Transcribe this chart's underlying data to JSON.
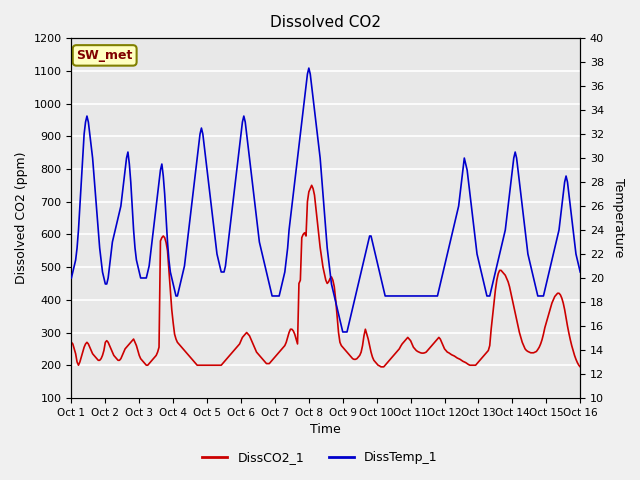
{
  "title": "Dissolved CO2",
  "xlabel": "Time",
  "ylabel_left": "Dissolved CO2 (ppm)",
  "ylabel_right": "Temperature",
  "ylim_left": [
    100,
    1200
  ],
  "ylim_right": [
    10,
    40
  ],
  "yticks_left": [
    100,
    200,
    300,
    400,
    500,
    600,
    700,
    800,
    900,
    1000,
    1100,
    1200
  ],
  "yticks_right": [
    10,
    12,
    14,
    16,
    18,
    20,
    22,
    24,
    26,
    28,
    30,
    32,
    34,
    36,
    38,
    40
  ],
  "xtick_labels": [
    "Oct 1",
    "Oct 2",
    "Oct 3",
    "Oct 4",
    "Oct 5",
    "Oct 6",
    "Oct 7",
    "Oct 8",
    "Oct 9",
    "Oct 10",
    "Oct 11",
    "Oct 12",
    "Oct 13",
    "Oct 14",
    "Oct 15",
    "Oct 16"
  ],
  "bg_color": "#f0f0f0",
  "plot_bg_color": "#e8e8e8",
  "grid_color": "#ffffff",
  "line_co2_color": "#cc0000",
  "line_temp_color": "#0000cc",
  "legend_label_co2": "DissCO2_1",
  "legend_label_temp": "DissTemp_1",
  "box_label": "SW_met",
  "box_facecolor": "#ffffc0",
  "box_edgecolor": "#808000",
  "box_textcolor": "#800000",
  "num_points": 361,
  "co2_data": [
    270,
    265,
    250,
    235,
    210,
    200,
    210,
    225,
    240,
    255,
    265,
    270,
    265,
    255,
    245,
    235,
    230,
    225,
    220,
    215,
    215,
    220,
    230,
    245,
    270,
    275,
    270,
    260,
    250,
    240,
    230,
    225,
    220,
    215,
    215,
    220,
    230,
    240,
    250,
    255,
    260,
    265,
    270,
    275,
    280,
    270,
    260,
    245,
    230,
    220,
    215,
    210,
    205,
    200,
    200,
    205,
    210,
    215,
    220,
    225,
    230,
    240,
    255,
    580,
    590,
    595,
    590,
    575,
    550,
    490,
    430,
    370,
    330,
    295,
    280,
    270,
    265,
    260,
    255,
    250,
    245,
    240,
    235,
    230,
    225,
    220,
    215,
    210,
    205,
    200,
    200,
    200,
    200,
    200,
    200,
    200,
    200,
    200,
    200,
    200,
    200,
    200,
    200,
    200,
    200,
    200,
    200,
    205,
    210,
    215,
    220,
    225,
    230,
    235,
    240,
    245,
    250,
    255,
    260,
    265,
    275,
    285,
    290,
    295,
    300,
    295,
    290,
    280,
    270,
    260,
    250,
    240,
    235,
    230,
    225,
    220,
    215,
    210,
    205,
    205,
    205,
    210,
    215,
    220,
    225,
    230,
    235,
    240,
    245,
    250,
    255,
    260,
    270,
    285,
    300,
    310,
    310,
    305,
    295,
    280,
    265,
    450,
    460,
    590,
    600,
    605,
    595,
    700,
    730,
    740,
    750,
    740,
    720,
    680,
    640,
    600,
    560,
    530,
    500,
    480,
    460,
    450,
    455,
    465,
    470,
    460,
    440,
    400,
    350,
    300,
    270,
    260,
    255,
    250,
    245,
    240,
    235,
    230,
    225,
    220,
    218,
    218,
    220,
    225,
    230,
    240,
    260,
    290,
    310,
    295,
    280,
    260,
    240,
    225,
    215,
    210,
    205,
    200,
    198,
    195,
    195,
    195,
    200,
    205,
    210,
    215,
    220,
    225,
    230,
    235,
    240,
    245,
    250,
    258,
    265,
    270,
    275,
    280,
    285,
    280,
    275,
    265,
    255,
    250,
    245,
    242,
    240,
    238,
    237,
    237,
    238,
    240,
    245,
    250,
    255,
    260,
    265,
    270,
    275,
    280,
    285,
    280,
    270,
    260,
    250,
    245,
    240,
    238,
    235,
    232,
    230,
    228,
    225,
    222,
    220,
    218,
    215,
    212,
    210,
    208,
    205,
    202,
    200,
    200,
    200,
    200,
    200,
    205,
    210,
    215,
    220,
    225,
    230,
    235,
    240,
    245,
    260,
    310,
    350,
    390,
    430,
    460,
    480,
    490,
    490,
    485,
    480,
    475,
    465,
    455,
    440,
    420,
    400,
    380,
    360,
    340,
    320,
    300,
    285,
    270,
    260,
    250,
    245,
    242,
    240,
    238,
    238,
    238,
    240,
    242,
    248,
    255,
    265,
    278,
    295,
    315,
    330,
    345,
    360,
    375,
    390,
    400,
    410,
    415,
    420,
    420,
    415,
    405,
    390,
    370,
    345,
    320,
    298,
    278,
    260,
    245,
    230,
    218,
    208,
    200,
    195
  ],
  "temp_data": [
    20,
    20.5,
    21,
    21.5,
    22.5,
    24,
    26,
    28,
    30,
    32,
    33,
    33.5,
    33,
    32,
    31,
    30,
    28.5,
    27,
    25.5,
    24,
    22.5,
    21.5,
    20.5,
    20,
    19.5,
    19.5,
    20,
    21,
    22,
    23,
    23.5,
    24,
    24.5,
    25,
    25.5,
    26,
    27,
    28,
    29,
    30,
    30.5,
    29.5,
    28,
    26,
    24,
    22.5,
    21.5,
    21,
    20.5,
    20,
    20,
    20,
    20,
    20,
    20.5,
    21,
    22,
    23,
    24,
    25,
    26,
    27,
    28,
    29,
    29.5,
    28.5,
    27,
    25,
    23,
    21.5,
    20.5,
    20,
    19.5,
    19,
    18.5,
    18.5,
    19,
    19.5,
    20,
    20.5,
    21,
    22,
    23,
    24,
    25,
    26,
    27,
    28,
    29,
    30,
    31,
    32,
    32.5,
    32,
    31,
    30,
    29,
    28,
    27,
    26,
    25,
    24,
    23,
    22,
    21.5,
    21,
    20.5,
    20.5,
    20.5,
    21,
    22,
    23,
    24,
    25,
    26,
    27,
    28,
    29,
    30,
    31,
    32,
    33,
    33.5,
    33,
    32,
    31,
    30,
    29,
    28,
    27,
    26,
    25,
    24,
    23,
    22.5,
    22,
    21.5,
    21,
    20.5,
    20,
    19.5,
    19,
    18.5,
    18.5,
    18.5,
    18.5,
    18.5,
    18.5,
    19,
    19.5,
    20,
    20.5,
    21.5,
    22.5,
    24,
    25,
    26,
    27,
    28,
    29,
    30,
    31,
    32,
    33,
    34,
    35,
    36,
    37,
    37.5,
    37,
    36,
    35,
    34,
    33,
    32,
    31,
    30,
    28.5,
    27,
    25.5,
    24,
    22.5,
    21.5,
    20.5,
    19.5,
    19,
    18.5,
    18,
    17.5,
    17,
    16.5,
    16,
    15.5,
    15.5,
    15.5,
    15.5,
    16,
    16.5,
    17,
    17.5,
    18,
    18.5,
    19,
    19.5,
    20,
    20.5,
    21,
    21.5,
    22,
    22.5,
    23,
    23.5,
    23.5,
    23,
    22.5,
    22,
    21.5,
    21,
    20.5,
    20,
    19.5,
    19,
    18.5,
    18.5,
    18.5,
    18.5,
    18.5,
    18.5,
    18.5,
    18.5,
    18.5,
    18.5,
    18.5,
    18.5,
    18.5,
    18.5,
    18.5,
    18.5,
    18.5,
    18.5,
    18.5,
    18.5,
    18.5,
    18.5,
    18.5,
    18.5,
    18.5,
    18.5,
    18.5,
    18.5,
    18.5,
    18.5,
    18.5,
    18.5,
    18.5,
    18.5,
    18.5,
    18.5,
    18.5,
    18.5,
    19,
    19.5,
    20,
    20.5,
    21,
    21.5,
    22,
    22.5,
    23,
    23.5,
    24,
    24.5,
    25,
    25.5,
    26,
    27,
    28,
    29,
    30,
    29.5,
    29,
    28,
    27,
    26,
    25,
    24,
    23,
    22,
    21.5,
    21,
    20.5,
    20,
    19.5,
    19,
    18.5,
    18.5,
    18.5,
    19,
    19.5,
    20,
    20.5,
    21,
    21.5,
    22,
    22.5,
    23,
    23.5,
    24,
    25,
    26,
    27,
    28,
    29,
    30,
    30.5,
    30,
    29,
    28,
    27,
    26,
    25,
    24,
    23,
    22,
    21.5,
    21,
    20.5,
    20,
    19.5,
    19,
    18.5,
    18.5,
    18.5,
    18.5,
    18.5,
    19,
    19.5,
    20,
    20.5,
    21,
    21.5,
    22,
    22.5,
    23,
    23.5,
    24,
    25,
    26,
    27,
    28,
    28.5,
    28,
    27,
    26,
    25,
    24,
    23,
    22,
    21.5,
    21,
    20.5,
    20,
    19.5,
    19,
    18.5
  ]
}
